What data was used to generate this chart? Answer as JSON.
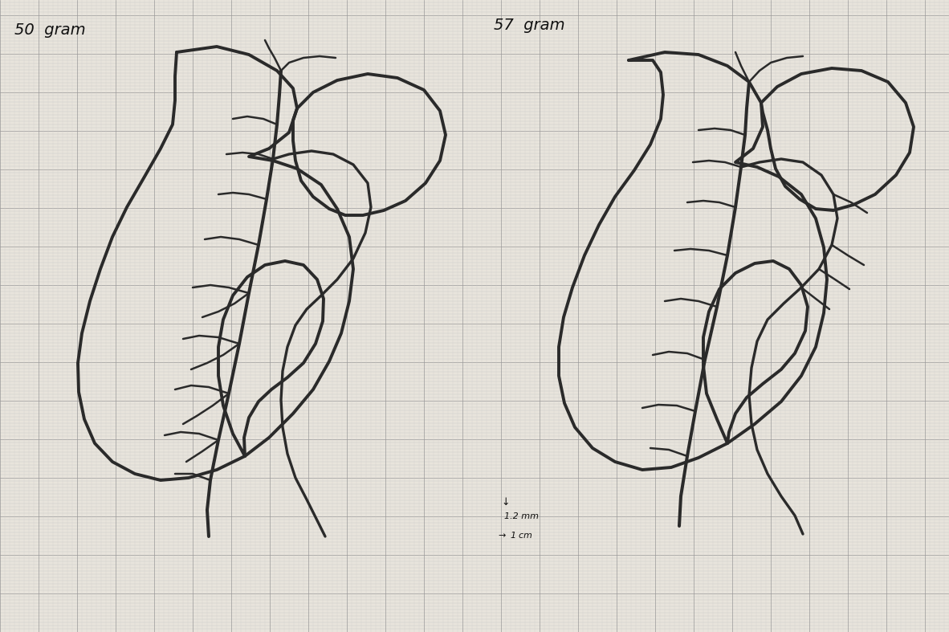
{
  "bg_color": "#e8e4dc",
  "grid_color_minor_h": "#bbbbbb",
  "grid_color_minor_v": "#cccccc",
  "grid_color_major": "#999999",
  "line_color": "#2a2a2a",
  "title_left": "50  gram",
  "title_right": "57  gram",
  "figsize": [
    11.82,
    7.87
  ],
  "dpi": 100
}
